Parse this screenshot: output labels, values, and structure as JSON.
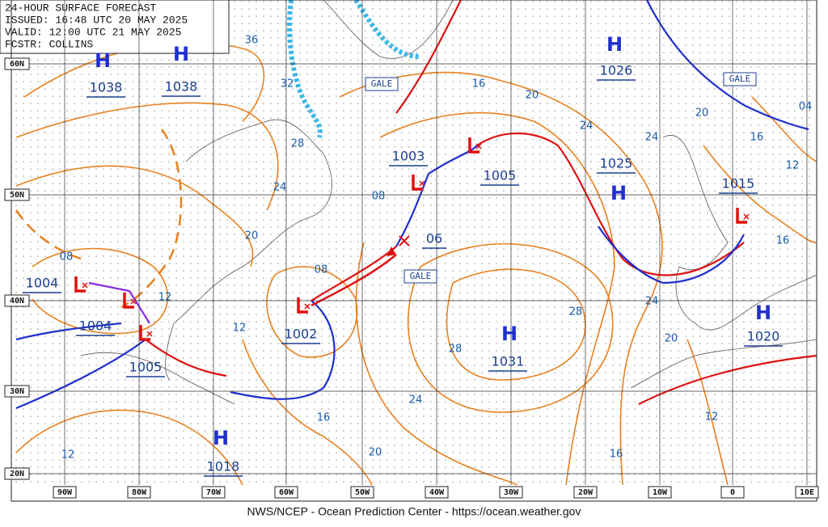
{
  "header": {
    "lines": [
      "24-HOUR SURFACE FORECAST",
      "ISSUED: 16:48 UTC 20 MAY 2025",
      "VALID: 12:00 UTC 21 MAY 2025",
      "FCSTR: COLLINS"
    ]
  },
  "highs": [
    {
      "label": "H",
      "pressure": 1038
    },
    {
      "label": "H",
      "pressure": 1038
    },
    {
      "label": "H",
      "pressure": 1026
    },
    {
      "label": "H",
      "pressure": 1025
    },
    {
      "label": "H",
      "pressure": 1031
    },
    {
      "label": "H",
      "pressure": 1020
    },
    {
      "label": "H",
      "pressure": 1018
    }
  ],
  "lows": [
    {
      "pressure": 1004
    },
    {
      "pressure": 1004
    },
    {
      "pressure": 1005
    },
    {
      "pressure": 1002
    },
    {
      "pressure": 1003
    },
    {
      "pressure": 1005
    },
    {
      "pressure": 1015
    }
  ],
  "developing_low": {
    "pressure": "06"
  },
  "isobar_labels": [
    "36",
    "32",
    "28",
    "24",
    "20",
    "16",
    "20",
    "24",
    "24",
    "20",
    "16",
    "12",
    "04",
    "08",
    "08",
    "08",
    "12",
    "12",
    "24",
    "20",
    "28",
    "28",
    "24",
    "16",
    "20",
    "16",
    "12",
    "12",
    "16"
  ],
  "gale_labels": [
    "GALE",
    "GALE",
    "GALE"
  ],
  "lat_labels": [
    "60N",
    "50N",
    "40N",
    "30N",
    "20N"
  ],
  "lon_labels": [
    "90W",
    "80W",
    "70W",
    "60W",
    "50W",
    "40W",
    "30W",
    "20W",
    "10W",
    "0",
    "10E"
  ],
  "footer": "NWS/NCEP - Ocean Prediction Center - https://ocean.weather.gov"
}
